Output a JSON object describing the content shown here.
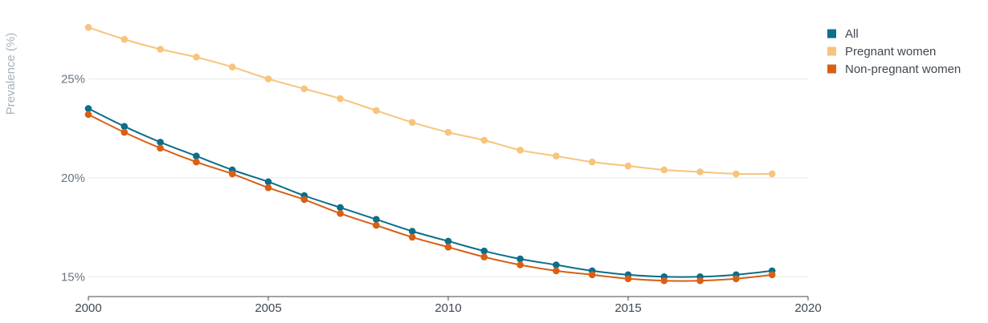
{
  "chart_data": {
    "type": "line",
    "title": "",
    "xlabel": "",
    "ylabel": "Prevalence (%)",
    "xlim": [
      2000,
      2020
    ],
    "ylim": [
      14,
      28.5
    ],
    "x_ticks": [
      2000,
      2005,
      2010,
      2015,
      2020
    ],
    "x_tick_labels": [
      "2000",
      "2005",
      "2010",
      "2015",
      "2020"
    ],
    "y_ticks": [
      15,
      20,
      25
    ],
    "y_tick_labels": [
      "15%",
      "20%",
      "25%"
    ],
    "grid": "horizontal",
    "legend_position": "top-right",
    "x": [
      2000,
      2001,
      2002,
      2003,
      2004,
      2005,
      2006,
      2007,
      2008,
      2009,
      2010,
      2011,
      2012,
      2013,
      2014,
      2015,
      2016,
      2017,
      2018,
      2019
    ],
    "series": [
      {
        "name": "All",
        "color": "#0b6e8a",
        "values": [
          23.5,
          22.6,
          21.8,
          21.1,
          20.4,
          19.8,
          19.1,
          18.5,
          17.9,
          17.3,
          16.8,
          16.3,
          15.9,
          15.6,
          15.3,
          15.1,
          15.0,
          15.0,
          15.1,
          15.3
        ]
      },
      {
        "name": "Pregnant women",
        "color": "#f7c47c",
        "values": [
          27.6,
          27.0,
          26.5,
          26.1,
          25.6,
          25.0,
          24.5,
          24.0,
          23.4,
          22.8,
          22.3,
          21.9,
          21.4,
          21.1,
          20.8,
          20.6,
          20.4,
          20.3,
          20.2,
          20.2
        ]
      },
      {
        "name": "Non-pregnant women",
        "color": "#d95f14",
        "values": [
          23.2,
          22.3,
          21.5,
          20.8,
          20.2,
          19.5,
          18.9,
          18.2,
          17.6,
          17.0,
          16.5,
          16.0,
          15.6,
          15.3,
          15.1,
          14.9,
          14.8,
          14.8,
          14.9,
          15.1
        ]
      }
    ]
  }
}
